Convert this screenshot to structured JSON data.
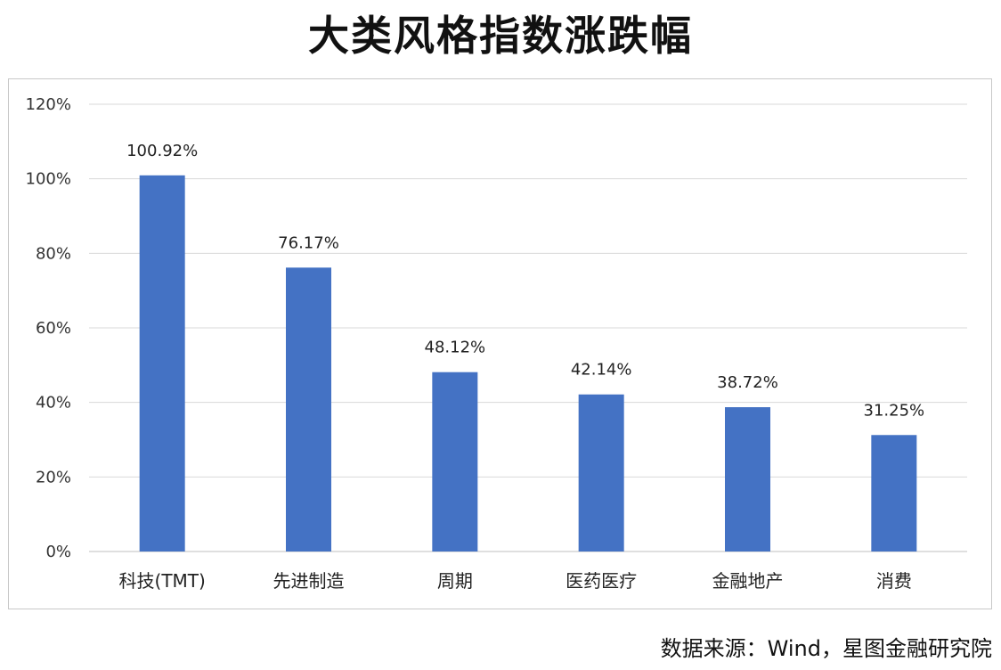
{
  "chart_data": {
    "type": "bar",
    "title": "大类风格指数涨跌幅",
    "categories": [
      "科技(TMT)",
      "先进制造",
      "周期",
      "医药医疗",
      "金融地产",
      "消费"
    ],
    "values": [
      100.92,
      76.17,
      48.12,
      42.14,
      38.72,
      31.25
    ],
    "data_labels": [
      "100.92%",
      "76.17%",
      "48.12%",
      "42.14%",
      "38.72%",
      "31.25%"
    ],
    "y_ticks": [
      "0%",
      "20%",
      "40%",
      "60%",
      "80%",
      "100%",
      "120%"
    ],
    "ylim": [
      0,
      120
    ],
    "grid": true,
    "bar_color": "#4472C4",
    "source": "数据来源：Wind，星图金融研究院"
  }
}
